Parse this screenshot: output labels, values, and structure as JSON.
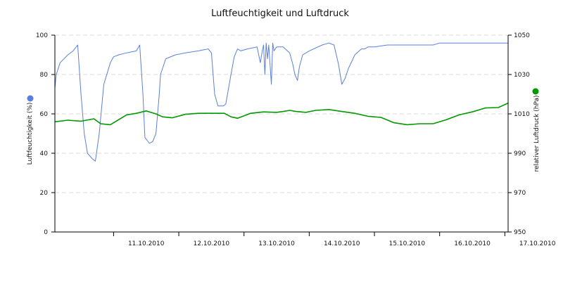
{
  "chart_data": {
    "type": "line",
    "title": "Luftfeuchtigkeit und Luftdruck",
    "xlabel": "",
    "x_tick_labels": [
      "11.10.2010",
      "12.10.2010",
      "13.10.2010",
      "14.10.2010",
      "15.10.2010",
      "16.10.2010",
      "17.10.2010"
    ],
    "x_range_days": [
      10.1,
      17.05
    ],
    "grid": true,
    "left_axis": {
      "label": "Luftfeuchtigkeit (%)",
      "range": [
        0,
        100
      ],
      "ticks": [
        "0",
        "20",
        "40",
        "60",
        "80",
        "100"
      ],
      "color": "#5b7fe0"
    },
    "right_axis": {
      "label": "relativer Luftdruck (hPa)",
      "range": [
        950,
        1050
      ],
      "ticks": [
        "950",
        "970",
        "990",
        "1010",
        "1030",
        "1050"
      ],
      "color": "#009900"
    },
    "series": [
      {
        "name": "Luftfeuchtigkeit (%)",
        "axis": "left",
        "color": "#5b7fe0",
        "x": [
          10.1,
          10.12,
          10.18,
          10.3,
          10.38,
          10.45,
          10.5,
          10.55,
          10.6,
          10.68,
          10.72,
          10.78,
          10.85,
          10.95,
          11.0,
          11.08,
          11.2,
          11.35,
          11.4,
          11.45,
          11.48,
          11.55,
          11.6,
          11.65,
          11.7,
          11.72,
          11.8,
          11.95,
          12.1,
          12.3,
          12.45,
          12.5,
          12.55,
          12.6,
          12.68,
          12.72,
          12.8,
          12.85,
          12.9,
          12.95,
          13.05,
          13.2,
          13.25,
          13.28,
          13.3,
          13.32,
          13.34,
          13.36,
          13.38,
          13.42,
          13.44,
          13.46,
          13.5,
          13.6,
          13.7,
          13.75,
          13.78,
          13.82,
          13.85,
          13.9,
          14.0,
          14.2,
          14.3,
          14.38,
          14.45,
          14.5,
          14.55,
          14.6,
          14.7,
          14.8,
          14.85,
          14.9,
          15.0,
          15.2,
          15.4,
          15.6,
          15.7,
          15.9,
          16.0,
          16.2,
          16.4,
          16.6,
          16.8,
          16.9,
          17.05
        ],
        "y": [
          73,
          80,
          86,
          90,
          92,
          95,
          70,
          50,
          40,
          37,
          36,
          50,
          75,
          86,
          89,
          90,
          91,
          92,
          95,
          70,
          48,
          45,
          46,
          50,
          70,
          80,
          88,
          90,
          91,
          92,
          93,
          91,
          70,
          64,
          64,
          65,
          80,
          89,
          93,
          92,
          93,
          94,
          86,
          92,
          95,
          80,
          96,
          88,
          95,
          75,
          96,
          92,
          94,
          94,
          91,
          85,
          80,
          77,
          84,
          90,
          92,
          95,
          96,
          95,
          85,
          75,
          78,
          83,
          90,
          93,
          93,
          94,
          94,
          95,
          95,
          95,
          95,
          95,
          96,
          96,
          96,
          96,
          96,
          96,
          96
        ]
      },
      {
        "name": "relativer Luftdruck (hPa)",
        "axis": "right",
        "color": "#009900",
        "x": [
          10.1,
          10.3,
          10.5,
          10.7,
          10.8,
          10.95,
          11.05,
          11.2,
          11.35,
          11.5,
          11.65,
          11.75,
          11.9,
          12.1,
          12.3,
          12.5,
          12.7,
          12.8,
          12.9,
          13.1,
          13.3,
          13.5,
          13.6,
          13.7,
          13.8,
          13.95,
          14.1,
          14.3,
          14.5,
          14.7,
          14.9,
          15.1,
          15.3,
          15.5,
          15.7,
          15.9,
          16.1,
          16.3,
          16.5,
          16.7,
          16.9,
          17.05
        ],
        "y": [
          1006,
          1006.8,
          1006.3,
          1007.5,
          1005,
          1004.5,
          1006.5,
          1009.5,
          1010.3,
          1011.5,
          1010,
          1008.5,
          1008,
          1009.8,
          1010.3,
          1010.3,
          1010.3,
          1008.5,
          1007.8,
          1010.3,
          1011,
          1010.8,
          1011.2,
          1011.8,
          1011.2,
          1010.8,
          1011.8,
          1012.2,
          1011.2,
          1010.3,
          1008.8,
          1008.2,
          1005.5,
          1004.5,
          1005,
          1005,
          1007,
          1009.5,
          1011,
          1013,
          1013.2,
          1015.5
        ]
      }
    ]
  }
}
